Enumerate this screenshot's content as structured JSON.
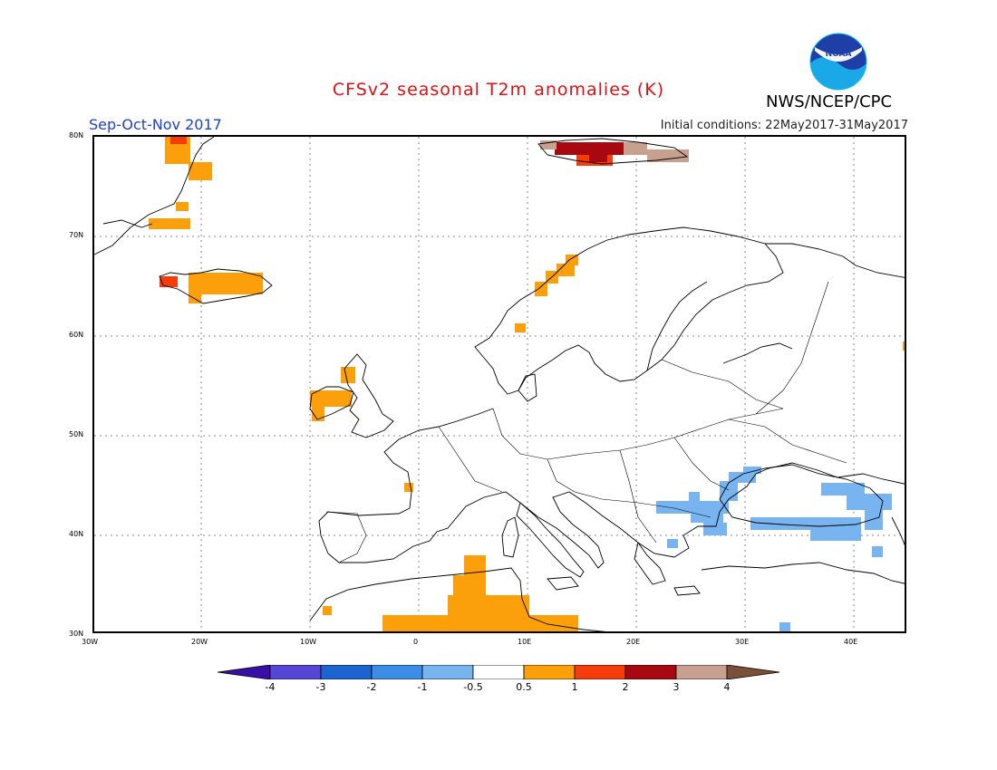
{
  "title": "CFSv2 seasonal T2m anomalies (K)",
  "agency": "NWS/NCEP/CPC",
  "logo_text": "NOAA",
  "season": "Sep-Oct-Nov 2017",
  "initial_conditions": "Initial conditions: 22May2017-31May2017",
  "lon_labels": [
    "30W",
    "20W",
    "10W",
    "0",
    "10E",
    "20E",
    "30E",
    "40E"
  ],
  "lat_labels": [
    "80N",
    "70N",
    "60N",
    "50N",
    "40N",
    "30N"
  ],
  "colorbar": {
    "labels": [
      "-4",
      "-3",
      "-2",
      "-1",
      "-0.5",
      "0.5",
      "1",
      "2",
      "3",
      "4"
    ],
    "colors": [
      "#3a0fa8",
      "#5646d6",
      "#1e64d0",
      "#3c8de6",
      "#78b4f0",
      "#ffffff",
      "#fba00a",
      "#f73c0c",
      "#a80810",
      "#c8a090",
      "#7b5038"
    ]
  },
  "colors": {
    "warm_05_1": "#fba00a",
    "warm_1_2": "#f73c0c",
    "warm_2_3": "#a80810",
    "warm_3_4": "#c8a090",
    "cool_05_1": "#78b4f0"
  }
}
